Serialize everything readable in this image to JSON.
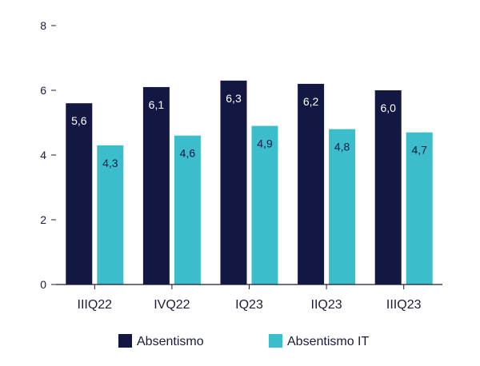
{
  "chart_data": {
    "type": "bar",
    "categories": [
      "IIIQ22",
      "IVQ22",
      "IQ23",
      "IIQ23",
      "IIIQ23"
    ],
    "series": [
      {
        "name": "Absentismo",
        "values": [
          5.6,
          6.1,
          6.3,
          6.2,
          6.0
        ],
        "labels": [
          "5,6",
          "6,1",
          "6,3",
          "6,2",
          "6,0"
        ],
        "color": "#131843",
        "label_color": "#ffffff"
      },
      {
        "name": "Absentismo IT",
        "values": [
          4.3,
          4.6,
          4.9,
          4.8,
          4.7
        ],
        "labels": [
          "4,3",
          "4,6",
          "4,9",
          "4,8",
          "4,7"
        ],
        "color": "#3bbdcb",
        "label_color": "#131843"
      }
    ],
    "ylim": [
      0,
      8
    ],
    "yticks": [
      0,
      2,
      4,
      6,
      8
    ],
    "grid": false,
    "legend": "bottom"
  }
}
